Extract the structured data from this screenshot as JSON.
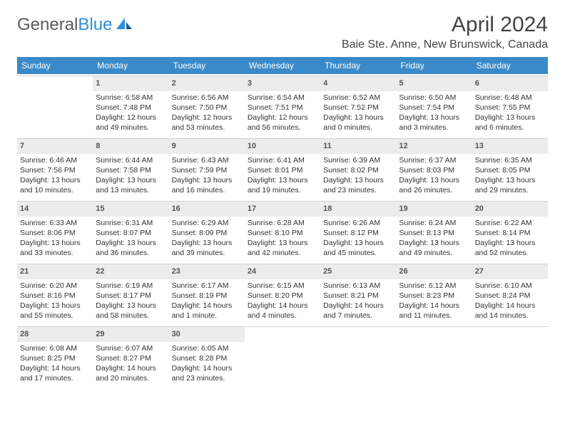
{
  "logo": {
    "word1": "General",
    "word2": "Blue"
  },
  "title": "April 2024",
  "location": "Baie Ste. Anne, New Brunswick, Canada",
  "colors": {
    "header_bg": "#3a8ac9",
    "header_fg": "#ffffff",
    "daynum_bg": "#ececec",
    "border": "#c9d4dc",
    "text": "#333333",
    "logo_gray": "#5a5a5a",
    "logo_blue": "#2f8fd7"
  },
  "day_headers": [
    "Sunday",
    "Monday",
    "Tuesday",
    "Wednesday",
    "Thursday",
    "Friday",
    "Saturday"
  ],
  "weeks": [
    [
      {
        "day": null
      },
      {
        "day": "1",
        "sunrise": "Sunrise: 6:58 AM",
        "sunset": "Sunset: 7:48 PM",
        "daylight": "Daylight: 12 hours and 49 minutes."
      },
      {
        "day": "2",
        "sunrise": "Sunrise: 6:56 AM",
        "sunset": "Sunset: 7:50 PM",
        "daylight": "Daylight: 12 hours and 53 minutes."
      },
      {
        "day": "3",
        "sunrise": "Sunrise: 6:54 AM",
        "sunset": "Sunset: 7:51 PM",
        "daylight": "Daylight: 12 hours and 56 minutes."
      },
      {
        "day": "4",
        "sunrise": "Sunrise: 6:52 AM",
        "sunset": "Sunset: 7:52 PM",
        "daylight": "Daylight: 13 hours and 0 minutes."
      },
      {
        "day": "5",
        "sunrise": "Sunrise: 6:50 AM",
        "sunset": "Sunset: 7:54 PM",
        "daylight": "Daylight: 13 hours and 3 minutes."
      },
      {
        "day": "6",
        "sunrise": "Sunrise: 6:48 AM",
        "sunset": "Sunset: 7:55 PM",
        "daylight": "Daylight: 13 hours and 6 minutes."
      }
    ],
    [
      {
        "day": "7",
        "sunrise": "Sunrise: 6:46 AM",
        "sunset": "Sunset: 7:56 PM",
        "daylight": "Daylight: 13 hours and 10 minutes."
      },
      {
        "day": "8",
        "sunrise": "Sunrise: 6:44 AM",
        "sunset": "Sunset: 7:58 PM",
        "daylight": "Daylight: 13 hours and 13 minutes."
      },
      {
        "day": "9",
        "sunrise": "Sunrise: 6:43 AM",
        "sunset": "Sunset: 7:59 PM",
        "daylight": "Daylight: 13 hours and 16 minutes."
      },
      {
        "day": "10",
        "sunrise": "Sunrise: 6:41 AM",
        "sunset": "Sunset: 8:01 PM",
        "daylight": "Daylight: 13 hours and 19 minutes."
      },
      {
        "day": "11",
        "sunrise": "Sunrise: 6:39 AM",
        "sunset": "Sunset: 8:02 PM",
        "daylight": "Daylight: 13 hours and 23 minutes."
      },
      {
        "day": "12",
        "sunrise": "Sunrise: 6:37 AM",
        "sunset": "Sunset: 8:03 PM",
        "daylight": "Daylight: 13 hours and 26 minutes."
      },
      {
        "day": "13",
        "sunrise": "Sunrise: 6:35 AM",
        "sunset": "Sunset: 8:05 PM",
        "daylight": "Daylight: 13 hours and 29 minutes."
      }
    ],
    [
      {
        "day": "14",
        "sunrise": "Sunrise: 6:33 AM",
        "sunset": "Sunset: 8:06 PM",
        "daylight": "Daylight: 13 hours and 33 minutes."
      },
      {
        "day": "15",
        "sunrise": "Sunrise: 6:31 AM",
        "sunset": "Sunset: 8:07 PM",
        "daylight": "Daylight: 13 hours and 36 minutes."
      },
      {
        "day": "16",
        "sunrise": "Sunrise: 6:29 AM",
        "sunset": "Sunset: 8:09 PM",
        "daylight": "Daylight: 13 hours and 39 minutes."
      },
      {
        "day": "17",
        "sunrise": "Sunrise: 6:28 AM",
        "sunset": "Sunset: 8:10 PM",
        "daylight": "Daylight: 13 hours and 42 minutes."
      },
      {
        "day": "18",
        "sunrise": "Sunrise: 6:26 AM",
        "sunset": "Sunset: 8:12 PM",
        "daylight": "Daylight: 13 hours and 45 minutes."
      },
      {
        "day": "19",
        "sunrise": "Sunrise: 6:24 AM",
        "sunset": "Sunset: 8:13 PM",
        "daylight": "Daylight: 13 hours and 49 minutes."
      },
      {
        "day": "20",
        "sunrise": "Sunrise: 6:22 AM",
        "sunset": "Sunset: 8:14 PM",
        "daylight": "Daylight: 13 hours and 52 minutes."
      }
    ],
    [
      {
        "day": "21",
        "sunrise": "Sunrise: 6:20 AM",
        "sunset": "Sunset: 8:16 PM",
        "daylight": "Daylight: 13 hours and 55 minutes."
      },
      {
        "day": "22",
        "sunrise": "Sunrise: 6:19 AM",
        "sunset": "Sunset: 8:17 PM",
        "daylight": "Daylight: 13 hours and 58 minutes."
      },
      {
        "day": "23",
        "sunrise": "Sunrise: 6:17 AM",
        "sunset": "Sunset: 8:19 PM",
        "daylight": "Daylight: 14 hours and 1 minute."
      },
      {
        "day": "24",
        "sunrise": "Sunrise: 6:15 AM",
        "sunset": "Sunset: 8:20 PM",
        "daylight": "Daylight: 14 hours and 4 minutes."
      },
      {
        "day": "25",
        "sunrise": "Sunrise: 6:13 AM",
        "sunset": "Sunset: 8:21 PM",
        "daylight": "Daylight: 14 hours and 7 minutes."
      },
      {
        "day": "26",
        "sunrise": "Sunrise: 6:12 AM",
        "sunset": "Sunset: 8:23 PM",
        "daylight": "Daylight: 14 hours and 11 minutes."
      },
      {
        "day": "27",
        "sunrise": "Sunrise: 6:10 AM",
        "sunset": "Sunset: 8:24 PM",
        "daylight": "Daylight: 14 hours and 14 minutes."
      }
    ],
    [
      {
        "day": "28",
        "sunrise": "Sunrise: 6:08 AM",
        "sunset": "Sunset: 8:25 PM",
        "daylight": "Daylight: 14 hours and 17 minutes."
      },
      {
        "day": "29",
        "sunrise": "Sunrise: 6:07 AM",
        "sunset": "Sunset: 8:27 PM",
        "daylight": "Daylight: 14 hours and 20 minutes."
      },
      {
        "day": "30",
        "sunrise": "Sunrise: 6:05 AM",
        "sunset": "Sunset: 8:28 PM",
        "daylight": "Daylight: 14 hours and 23 minutes."
      },
      {
        "day": null
      },
      {
        "day": null
      },
      {
        "day": null
      },
      {
        "day": null
      }
    ]
  ]
}
